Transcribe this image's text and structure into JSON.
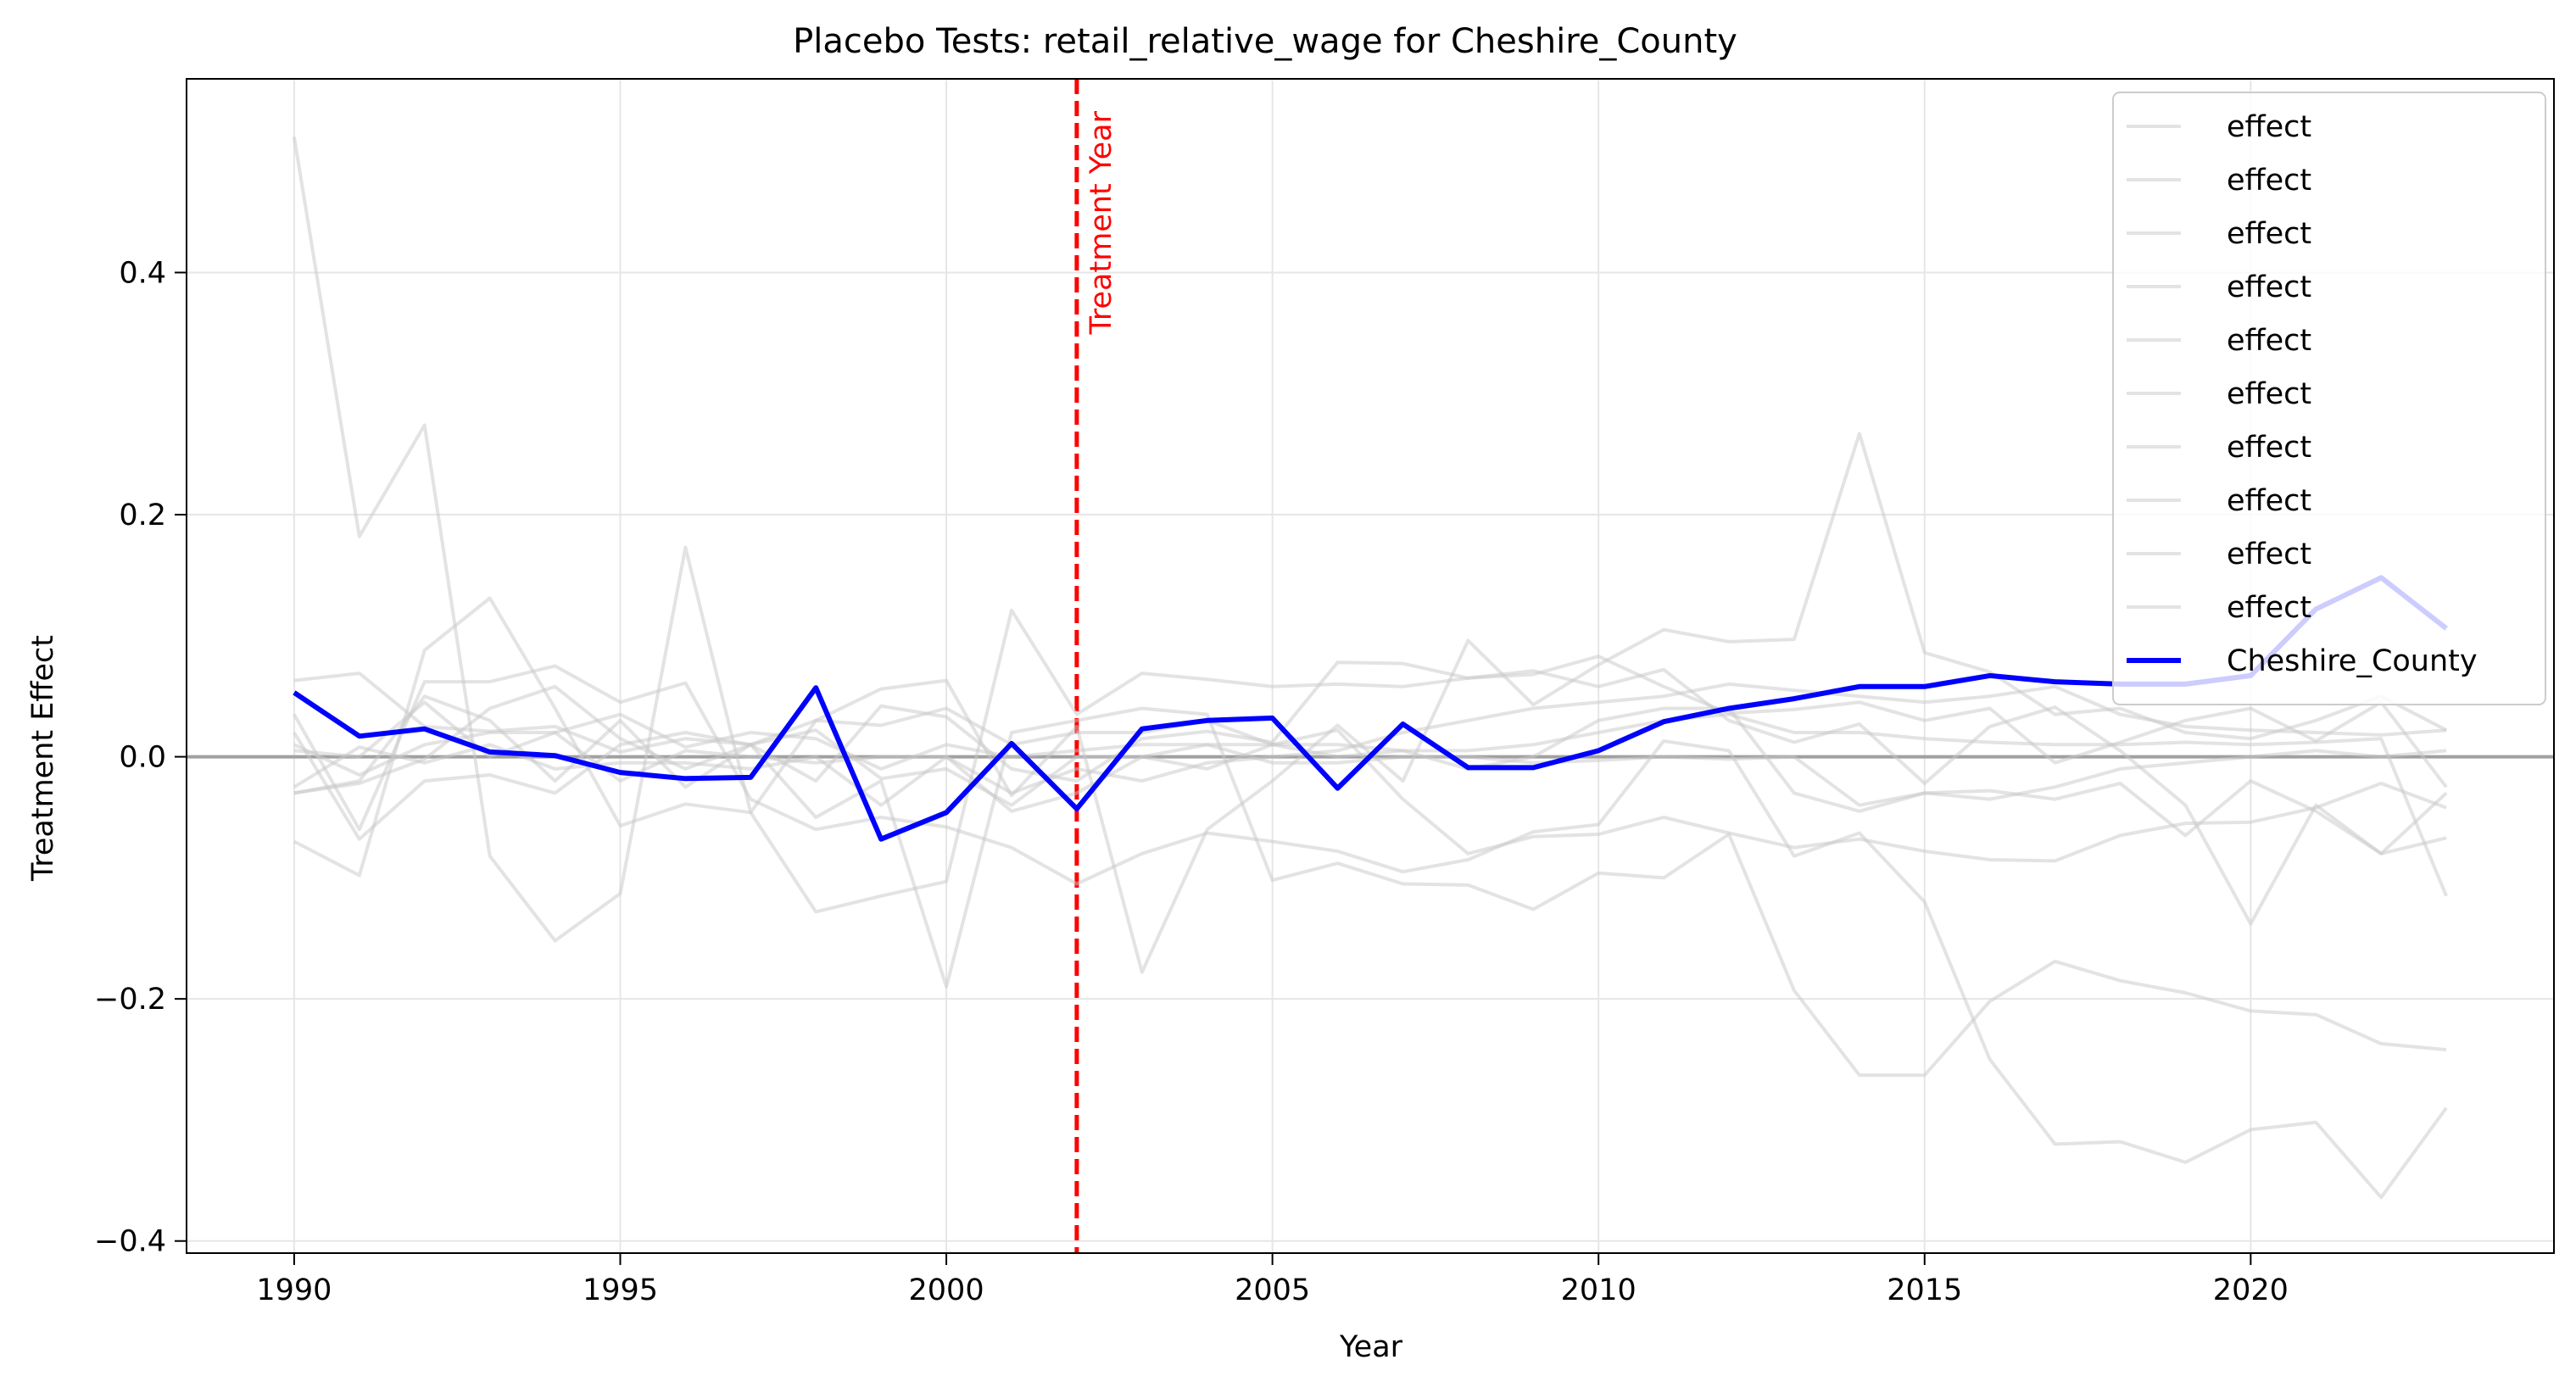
{
  "chart_data": {
    "type": "line",
    "title": "Placebo Tests: retail_relative_wage for Cheshire_County",
    "xlabel": "Year",
    "ylabel": "Treatment Effect",
    "xlim": [
      1988.35,
      2024.65
    ],
    "ylim": [
      -0.41,
      0.56
    ],
    "xticks": [
      1990,
      1995,
      2000,
      2005,
      2010,
      2015,
      2020
    ],
    "xtick_labels": [
      "1990",
      "1995",
      "2000",
      "2005",
      "2010",
      "2015",
      "2020"
    ],
    "yticks": [
      -0.4,
      -0.2,
      0.0,
      0.2,
      0.4
    ],
    "ytick_labels": [
      "−0.4",
      "−0.2",
      "0.0",
      "0.2",
      "0.4"
    ],
    "grid": true,
    "legend_position": "top-right",
    "zero_line": {
      "y": 0.0,
      "color": "#a0a0a0"
    },
    "treatment_line": {
      "x": 2002,
      "label": "Treatment Year",
      "color": "#ff0000",
      "style": "dashed"
    },
    "x": [
      1990,
      1991,
      1992,
      1993,
      1994,
      1995,
      1996,
      1997,
      1998,
      1999,
      2000,
      2001,
      2002,
      2003,
      2004,
      2005,
      2006,
      2007,
      2008,
      2009,
      2010,
      2011,
      2012,
      2013,
      2014,
      2015,
      2016,
      2017,
      2018,
      2019,
      2020,
      2021,
      2022,
      2023
    ],
    "series": [
      {
        "name": "effect",
        "role": "placebo",
        "color": "#c8c8c8",
        "values": [
          0.512,
          0.182,
          0.274,
          -0.082,
          -0.152,
          -0.113,
          0.173,
          -0.046,
          0.03,
          0.056,
          0.063,
          -0.032,
          0.025,
          -0.178,
          -0.06,
          -0.02,
          0.026,
          -0.02,
          0.096,
          0.043,
          0.076,
          0.105,
          0.095,
          0.097,
          0.267,
          0.086,
          0.07,
          0.035,
          0.04,
          0.02,
          0.015,
          0.03,
          0.05,
          0.022
        ]
      },
      {
        "name": "effect",
        "role": "placebo",
        "color": "#c8c8c8",
        "values": [
          -0.07,
          -0.098,
          0.088,
          0.131,
          0.04,
          -0.057,
          -0.039,
          -0.046,
          -0.128,
          -0.115,
          -0.103,
          0.121,
          0.035,
          0.069,
          0.064,
          0.058,
          0.06,
          0.058,
          0.065,
          0.068,
          0.083,
          0.058,
          0.036,
          0.039,
          0.045,
          0.03,
          0.04,
          -0.005,
          0.012,
          0.03,
          0.04,
          0.013,
          0.045,
          -0.025
        ]
      },
      {
        "name": "effect",
        "role": "placebo",
        "color": "#c8c8c8",
        "values": [
          0.063,
          0.069,
          0.025,
          0.021,
          0.025,
          0.004,
          0.015,
          0.01,
          -0.05,
          -0.02,
          -0.19,
          0.02,
          0.03,
          0.04,
          0.035,
          -0.102,
          -0.088,
          -0.105,
          -0.106,
          -0.126,
          -0.096,
          -0.1,
          -0.064,
          -0.193,
          -0.263,
          -0.263,
          -0.202,
          -0.169,
          -0.185,
          -0.195,
          -0.21,
          -0.213,
          -0.237,
          -0.242
        ]
      },
      {
        "name": "effect",
        "role": "placebo",
        "color": "#c8c8c8",
        "values": [
          0.035,
          -0.06,
          0.062,
          0.062,
          0.075,
          0.045,
          0.061,
          -0.035,
          -0.06,
          -0.05,
          -0.058,
          -0.075,
          -0.105,
          -0.08,
          -0.063,
          -0.07,
          -0.078,
          -0.095,
          -0.085,
          -0.062,
          -0.056,
          0.013,
          0.005,
          -0.082,
          -0.063,
          -0.12,
          -0.25,
          -0.32,
          -0.318,
          -0.335,
          -0.308,
          -0.302,
          -0.364,
          -0.29
        ]
      },
      {
        "name": "effect",
        "role": "placebo",
        "color": "#c8c8c8",
        "values": [
          -0.03,
          -0.02,
          0.05,
          0.03,
          -0.02,
          0.03,
          -0.025,
          0.01,
          -0.02,
          0.042,
          0.033,
          -0.01,
          -0.02,
          0.015,
          0.021,
          0.012,
          0.078,
          0.077,
          0.065,
          0.071,
          0.058,
          0.072,
          0.03,
          0.012,
          0.027,
          -0.022,
          0.025,
          0.041,
          0.005,
          -0.04,
          -0.138,
          -0.04,
          -0.08,
          -0.067
        ]
      },
      {
        "name": "effect",
        "role": "placebo",
        "color": "#c8c8c8",
        "values": [
          0.02,
          -0.068,
          -0.02,
          -0.015,
          -0.03,
          0.01,
          0.02,
          0.01,
          0.03,
          0.026,
          0.04,
          0.01,
          0.02,
          0.02,
          0.03,
          0.01,
          0.022,
          -0.035,
          -0.08,
          -0.066,
          -0.064,
          -0.05,
          -0.063,
          -0.075,
          -0.068,
          -0.078,
          -0.085,
          -0.086,
          -0.065,
          -0.055,
          -0.054,
          -0.042,
          -0.022,
          -0.042
        ]
      },
      {
        "name": "effect",
        "role": "placebo",
        "color": "#c8c8c8",
        "values": [
          -0.03,
          -0.022,
          -0.002,
          0.04,
          0.058,
          0.015,
          -0.01,
          0.01,
          0.022,
          -0.018,
          -0.01,
          -0.04,
          0.0,
          0.0,
          -0.01,
          0.01,
          0.01,
          0.005,
          0.005,
          0.01,
          0.02,
          0.03,
          0.035,
          0.02,
          0.02,
          0.015,
          0.012,
          0.01,
          0.01,
          0.012,
          0.01,
          0.012,
          0.015,
          -0.115
        ]
      },
      {
        "name": "effect",
        "role": "placebo",
        "color": "#c8c8c8",
        "values": [
          0.005,
          0.0,
          0.045,
          0.0,
          0.02,
          0.035,
          0.008,
          0.02,
          0.015,
          -0.01,
          0.01,
          0.0,
          0.005,
          0.01,
          0.01,
          -0.005,
          -0.005,
          0.0,
          0.0,
          -0.005,
          -0.003,
          0.0,
          -0.002,
          0.0,
          -0.04,
          -0.03,
          -0.035,
          -0.025,
          -0.01,
          -0.005,
          0.0,
          0.005,
          0.0,
          0.005
        ]
      },
      {
        "name": "effect",
        "role": "placebo",
        "color": "#c8c8c8",
        "values": [
          0.01,
          -0.015,
          0.01,
          0.02,
          0.02,
          -0.02,
          0.005,
          0.0,
          -0.005,
          0.0,
          0.0,
          -0.03,
          -0.01,
          -0.02,
          -0.005,
          0.0,
          0.005,
          0.02,
          0.03,
          0.04,
          0.045,
          0.05,
          0.06,
          0.055,
          0.05,
          0.045,
          0.05,
          0.058,
          0.035,
          0.025,
          0.022,
          0.02,
          0.018,
          0.022
        ]
      },
      {
        "name": "effect",
        "role": "placebo",
        "color": "#c8c8c8",
        "values": [
          -0.025,
          0.008,
          -0.005,
          0.01,
          -0.01,
          -0.005,
          -0.005,
          -0.01,
          0.0,
          -0.04,
          0.0,
          -0.045,
          -0.03,
          0.0,
          0.01,
          0.01,
          0.0,
          0.005,
          -0.01,
          0.0,
          0.03,
          0.04,
          0.04,
          -0.03,
          -0.045,
          -0.03,
          -0.028,
          -0.035,
          -0.022,
          -0.065,
          -0.02,
          -0.045,
          -0.08,
          -0.03
        ]
      },
      {
        "name": "Cheshire_County",
        "role": "treated",
        "color": "#0000ff",
        "values": [
          0.053,
          0.017,
          0.023,
          0.004,
          0.001,
          -0.013,
          -0.018,
          -0.017,
          0.057,
          -0.068,
          -0.046,
          0.011,
          -0.043,
          0.023,
          0.03,
          0.032,
          -0.026,
          0.027,
          -0.009,
          -0.009,
          0.005,
          0.029,
          0.04,
          0.048,
          0.058,
          0.058,
          0.067,
          0.062,
          0.06,
          0.06,
          0.067,
          0.122,
          0.148,
          0.106
        ]
      }
    ]
  }
}
